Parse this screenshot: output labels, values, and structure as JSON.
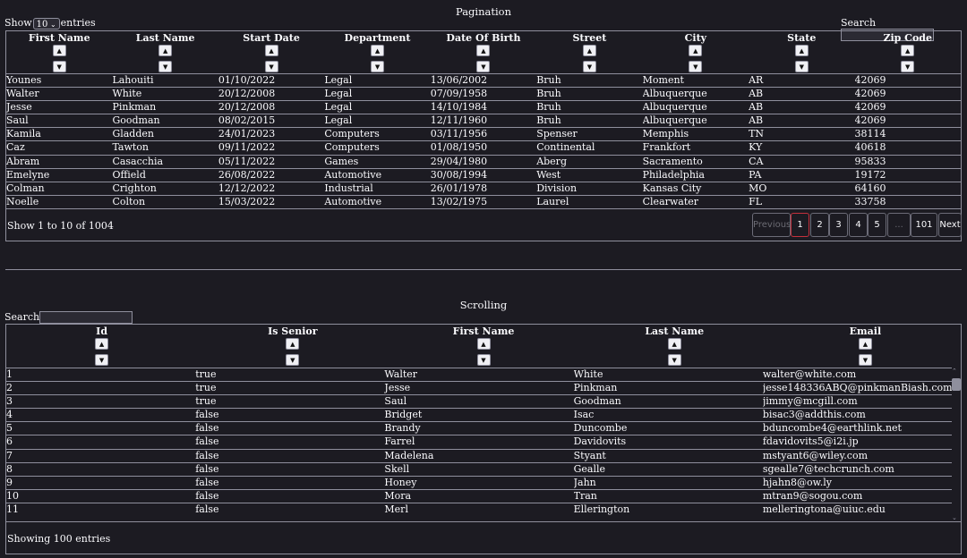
{
  "pagination_section": {
    "title": "Pagination",
    "show_label": "Show",
    "entries_label": "entries",
    "page_size": "10",
    "search_label": "Search",
    "search_value": "",
    "sort_asc_glyph": "▲",
    "sort_desc_glyph": "▼",
    "columns": [
      "First Name",
      "Last Name",
      "Start Date",
      "Department",
      "Date Of Birth",
      "Street",
      "City",
      "State",
      "Zip Code"
    ],
    "rows": [
      [
        "Younes",
        "Lahouiti",
        "01/10/2022",
        "Legal",
        "13/06/2002",
        "Bruh",
        "Moment",
        "AR",
        "42069"
      ],
      [
        "Walter",
        "White",
        "20/12/2008",
        "Legal",
        "07/09/1958",
        "Bruh",
        "Albuquerque",
        "AB",
        "42069"
      ],
      [
        "Jesse",
        "Pinkman",
        "20/12/2008",
        "Legal",
        "14/10/1984",
        "Bruh",
        "Albuquerque",
        "AB",
        "42069"
      ],
      [
        "Saul",
        "Goodman",
        "08/02/2015",
        "Legal",
        "12/11/1960",
        "Bruh",
        "Albuquerque",
        "AB",
        "42069"
      ],
      [
        "Kamila",
        "Gladden",
        "24/01/2023",
        "Computers",
        "03/11/1956",
        "Spenser",
        "Memphis",
        "TN",
        "38114"
      ],
      [
        "Caz",
        "Tawton",
        "09/11/2022",
        "Computers",
        "01/08/1950",
        "Continental",
        "Frankfort",
        "KY",
        "40618"
      ],
      [
        "Abram",
        "Casacchia",
        "05/11/2022",
        "Games",
        "29/04/1980",
        "Aberg",
        "Sacramento",
        "CA",
        "95833"
      ],
      [
        "Emelyne",
        "Offield",
        "26/08/2022",
        "Automotive",
        "30/08/1994",
        "West",
        "Philadelphia",
        "PA",
        "19172"
      ],
      [
        "Colman",
        "Crighton",
        "12/12/2022",
        "Industrial",
        "26/01/1978",
        "Division",
        "Kansas City",
        "MO",
        "64160"
      ],
      [
        "Noelle",
        "Colton",
        "15/03/2022",
        "Automotive",
        "13/02/1975",
        "Laurel",
        "Clearwater",
        "FL",
        "33758"
      ]
    ],
    "status_text": "Show 1 to 10 of 1004",
    "pager": {
      "previous": "Previous",
      "pages": [
        "1",
        "2",
        "3",
        "4",
        "5",
        "...",
        "101"
      ],
      "next": "Next",
      "active_page": "1"
    }
  },
  "scrolling_section": {
    "title": "Scrolling",
    "search_label": "Search",
    "search_value": "",
    "columns": [
      "Id",
      "Is Senior",
      "First Name",
      "Last Name",
      "Email"
    ],
    "rows": [
      [
        "1",
        "true",
        "Walter",
        "White",
        "walter@white.com"
      ],
      [
        "2",
        "true",
        "Jesse",
        "Pinkman",
        "jesse148336ABQ@pinkmanBiash.com"
      ],
      [
        "3",
        "true",
        "Saul",
        "Goodman",
        "jimmy@mcgill.com"
      ],
      [
        "4",
        "false",
        "Bridget",
        "Isac",
        "bisac3@addthis.com"
      ],
      [
        "5",
        "false",
        "Brandy",
        "Duncombe",
        "bduncombe4@earthlink.net"
      ],
      [
        "6",
        "false",
        "Farrel",
        "Davidovits",
        "fdavidovits5@i2i.jp"
      ],
      [
        "7",
        "false",
        "Madelena",
        "Styant",
        "mstyant6@wiley.com"
      ],
      [
        "8",
        "false",
        "Skell",
        "Gealle",
        "sgealle7@techcrunch.com"
      ],
      [
        "9",
        "false",
        "Honey",
        "Jahn",
        "hjahn8@ow.ly"
      ],
      [
        "10",
        "false",
        "Mora",
        "Tran",
        "mtran9@sogou.com"
      ],
      [
        "11",
        "false",
        "Merl",
        "Ellerington",
        "melleringtona@uiuc.edu"
      ]
    ],
    "status_text": "Showing 100 entries"
  },
  "colors": {
    "background": "#1c1b22",
    "text": "#fbfbfe",
    "border": "#8f8f9d",
    "active_page_border": "#c5313d"
  }
}
